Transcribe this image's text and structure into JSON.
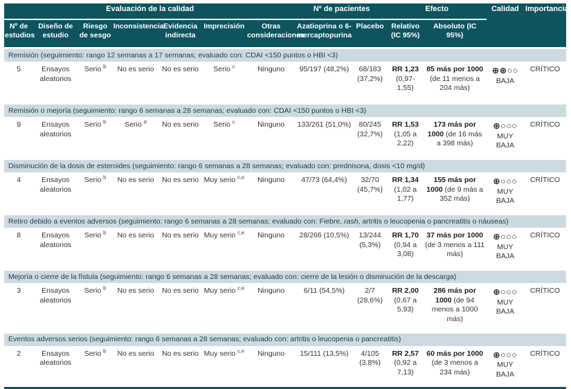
{
  "table": {
    "header": {
      "group_quality": "Evaluación de la calidad",
      "group_patients": "Nº de pacientes",
      "group_effect": "Efecto",
      "col_quality": "Calidad",
      "col_importance": "Importancia",
      "subcols": [
        "Nº de estudios",
        "Diseño de estudio",
        "Riesgo de sesgo",
        "Inconsistencia",
        "Evidencia indirecta",
        "Imprecisión",
        "Otras consideraciones",
        "Azatioprina o 6-mercaptopurina",
        "Placebo",
        "Relativo (IC 95%)",
        "Absoluto (IC 95%)"
      ]
    },
    "colors": {
      "header_teal": "#0d545e",
      "section_bg": "#ccdbe1",
      "row_bg": "#ffffff"
    }
  },
  "outcomes": [
    {
      "title_segments": [
        {
          "text": "Remisión (seguimiento: rango 12 semanas a 17 semanas; evaluado con: CDAI <150 puntos o HBI <3)",
          "italic": false
        }
      ],
      "n_studies": "5",
      "design": "Ensayos aleatorios",
      "risk_of_bias": {
        "text": "Serio",
        "sup": "b"
      },
      "inconsistency": {
        "text": "No es serio",
        "sup": ""
      },
      "indirectness": {
        "text": "No es serio",
        "sup": ""
      },
      "imprecision": {
        "text": "Serio",
        "sup": "c"
      },
      "other_considerations": "Ninguno",
      "azathioprine": "95/197 (48,2%)",
      "placebo": "68/183 (37,2%)",
      "relative": {
        "estimate": "RR 1,23",
        "ci": "(0,97-1,55)"
      },
      "absolute": {
        "estimate": "85 más por 1000",
        "ci": "(de 11 menos a 204 más)"
      },
      "quality": {
        "symbols": "⊕⊕○○",
        "label": "BAJA"
      },
      "importance": "CRÍTICO"
    },
    {
      "title_segments": [
        {
          "text": "Remisión o mejoría (seguimiento: rango 6 semanas a 28 semanas; evaluado con: CDAI <150 puntos o HBI <3)",
          "italic": false
        }
      ],
      "n_studies": "9",
      "design": "Ensayos aleatorios",
      "risk_of_bias": {
        "text": "Serio",
        "sup": "b"
      },
      "inconsistency": {
        "text": "Serio",
        "sup": "d"
      },
      "indirectness": {
        "text": "No es serio",
        "sup": ""
      },
      "imprecision": {
        "text": "Serio",
        "sup": "c"
      },
      "other_considerations": "Ninguno",
      "azathioprine": "133/261 (51,0%)",
      "placebo": "80/245 (32,7%)",
      "relative": {
        "estimate": "RR 1,53",
        "ci": "(1,05 a 2,22)"
      },
      "absolute": {
        "estimate": "173 más por 1000",
        "ci": "(de 16 más a 398 más)"
      },
      "quality": {
        "symbols": "⊕○○○",
        "label": "MUY BAJA"
      },
      "importance": "CRÍTICO"
    },
    {
      "title_segments": [
        {
          "text": "Disminución de la dosis de esteroides (seguimiento: rango 6 semanas a 28 semanas; evaluado con: prednisona, dosis <10 mg/d)",
          "italic": false
        }
      ],
      "n_studies": "4",
      "design": "Ensayos aleatorios",
      "risk_of_bias": {
        "text": "Serio",
        "sup": "b"
      },
      "inconsistency": {
        "text": "No es serio",
        "sup": ""
      },
      "indirectness": {
        "text": "No es serio",
        "sup": ""
      },
      "imprecision": {
        "text": "Muy serio",
        "sup": "c,e"
      },
      "other_considerations": "Ninguno",
      "azathioprine": "47/73 (64,4%)",
      "placebo": "32/70 (45,7%)",
      "relative": {
        "estimate": "RR 1,34",
        "ci": "(1,02 a 1,77)"
      },
      "absolute": {
        "estimate": "155 más por 1000",
        "ci": "(de 9 más a 352 más)"
      },
      "quality": {
        "symbols": "⊕○○○",
        "label": "MUY BAJA"
      },
      "importance": "CRÍTICO"
    },
    {
      "title_segments": [
        {
          "text": "Retiro debido a eventos adversos (seguimiento: rango 6 semanas a 28 semanas; evaluado con: Fiebre, ",
          "italic": false
        },
        {
          "text": "rash",
          "italic": true
        },
        {
          "text": ", artritis o leucopenia o pancreatitis o náuseas)",
          "italic": false
        }
      ],
      "n_studies": "8",
      "design": "Ensayos aleatorios",
      "risk_of_bias": {
        "text": "Serio",
        "sup": "b"
      },
      "inconsistency": {
        "text": "No es serio",
        "sup": ""
      },
      "indirectness": {
        "text": "No es serio",
        "sup": ""
      },
      "imprecision": {
        "text": "Muy serio",
        "sup": "c,e"
      },
      "other_considerations": "Ninguno",
      "azathioprine": "28/266 (10,5%)",
      "placebo": "13/244 (5,3%)",
      "relative": {
        "estimate": "RR 1,70",
        "ci": "(0,94 a 3,08)"
      },
      "absolute": {
        "estimate": "37 más por 1000",
        "ci": "(de 3 menos a 111 más)"
      },
      "quality": {
        "symbols": "⊕○○○",
        "label": "MUY BAJA"
      },
      "importance": "CRÍTICO"
    },
    {
      "title_segments": [
        {
          "text": "Mejoría o cierre de la fístula (seguimiento: rango 6 semanas a 28 semanas; evaluado con: cierre de la lesión o disminución de la descarga)",
          "italic": false
        }
      ],
      "n_studies": "3",
      "design": "Ensayos aleatorios",
      "risk_of_bias": {
        "text": "Serio",
        "sup": "b"
      },
      "inconsistency": {
        "text": "No es serio",
        "sup": ""
      },
      "indirectness": {
        "text": "No es serio",
        "sup": ""
      },
      "imprecision": {
        "text": "Muy serio",
        "sup": "c,e"
      },
      "other_considerations": "Ninguno",
      "azathioprine": "6/11 (54,5%)",
      "placebo": "2/7 (28,6%)",
      "relative": {
        "estimate": "RR 2,00",
        "ci": "(0,67 a 5,93)"
      },
      "absolute": {
        "estimate": "286 más por 1000",
        "ci": "(de 94 menos a 1000 más)"
      },
      "quality": {
        "symbols": "⊕○○○",
        "label": "MUY BAJA"
      },
      "importance": "CRÍTICO"
    },
    {
      "title_segments": [
        {
          "text": "Eventos adversos serios (seguimiento: rango 6 semanas a 28 semanas; evaluado con: artritis o leucopenia o pancreatitis)",
          "italic": false
        }
      ],
      "n_studies": "2",
      "design": "Ensayos aleatorios",
      "risk_of_bias": {
        "text": "Serio",
        "sup": "b"
      },
      "inconsistency": {
        "text": "No es serio",
        "sup": ""
      },
      "indirectness": {
        "text": "No es serio",
        "sup": ""
      },
      "imprecision": {
        "text": "Muy serio",
        "sup": "c,e"
      },
      "other_considerations": "Ninguno",
      "azathioprine": "15/111 (13,5%)",
      "placebo": "4/105 (3,8%)",
      "relative": {
        "estimate": "RR 2,57",
        "ci": "(0,92 a 7,13)"
      },
      "absolute": {
        "estimate": "60 más por 1000",
        "ci": "(de 3 menos a 234 más)"
      },
      "quality": {
        "symbols": "⊕○○○",
        "label": "MUY BAJA"
      },
      "importance": "CRÍTICO"
    }
  ]
}
